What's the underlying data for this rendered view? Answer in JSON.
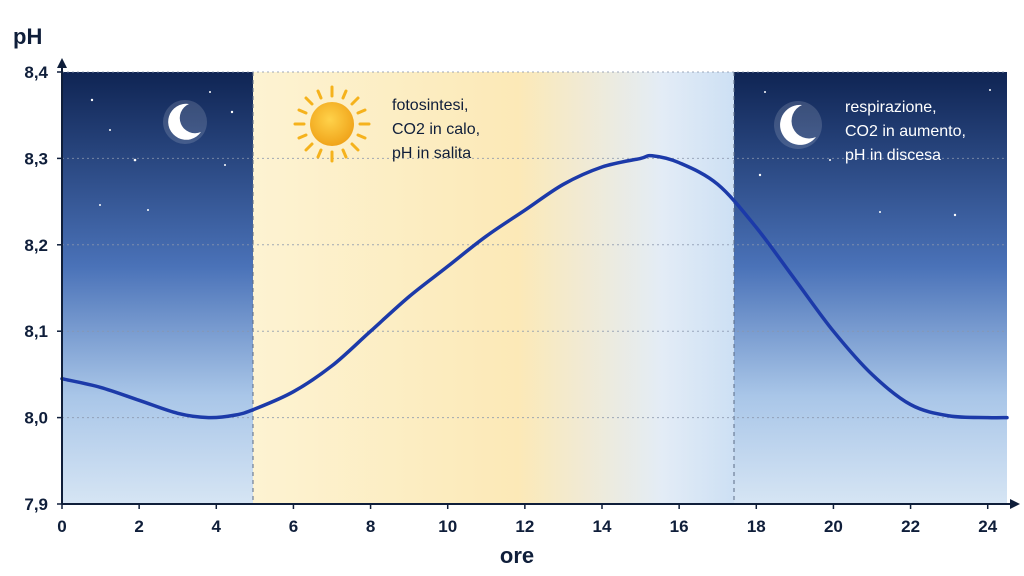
{
  "chart_data": {
    "type": "line",
    "ylabel": "pH",
    "xlabel": "ore",
    "xlim": [
      0,
      24.5
    ],
    "ylim": [
      7.9,
      8.4
    ],
    "x_ticks": [
      0,
      2,
      4,
      6,
      8,
      10,
      12,
      14,
      16,
      18,
      20,
      22,
      24
    ],
    "y_ticks": [
      7.9,
      8.0,
      8.1,
      8.2,
      8.3,
      8.4
    ],
    "y_tick_labels": [
      "7,9",
      "8,0",
      "8,1",
      "8,2",
      "8,3",
      "8,4"
    ],
    "grid": "horizontal dotted",
    "day_band": [
      5,
      17.5
    ],
    "series": [
      {
        "x": [
          0,
          1,
          2,
          3,
          3.8,
          4.5,
          5,
          6,
          7,
          8,
          9,
          10,
          11,
          12,
          13,
          14,
          15,
          15.3,
          16,
          17,
          18,
          19,
          20,
          21,
          22,
          23,
          24,
          24.5
        ],
        "values": [
          8.045,
          8.035,
          8.02,
          8.005,
          8.0,
          8.003,
          8.01,
          8.03,
          8.06,
          8.1,
          8.14,
          8.175,
          8.21,
          8.24,
          8.27,
          8.29,
          8.3,
          8.303,
          8.295,
          8.27,
          8.22,
          8.16,
          8.1,
          8.05,
          8.015,
          8.002,
          8.0,
          8.0
        ],
        "color": "#1c3aa9"
      }
    ],
    "annotations": [
      {
        "lines": [
          "fotosintesi,",
          "CO2 in calo,",
          "pH in salita"
        ]
      },
      {
        "lines": [
          "respirazione,",
          "CO2 in aumento,",
          "pH in discesa"
        ]
      }
    ],
    "colors": {
      "night_top": "#0f2453",
      "night_bottom": "#cfe0f3",
      "day_band": "#fdf1c8",
      "line": "#1c3aa9",
      "sun": "#f5b21c",
      "axis": "#0f1e3a"
    },
    "icons": [
      "moon-icon",
      "sun-icon",
      "moon-icon"
    ]
  }
}
